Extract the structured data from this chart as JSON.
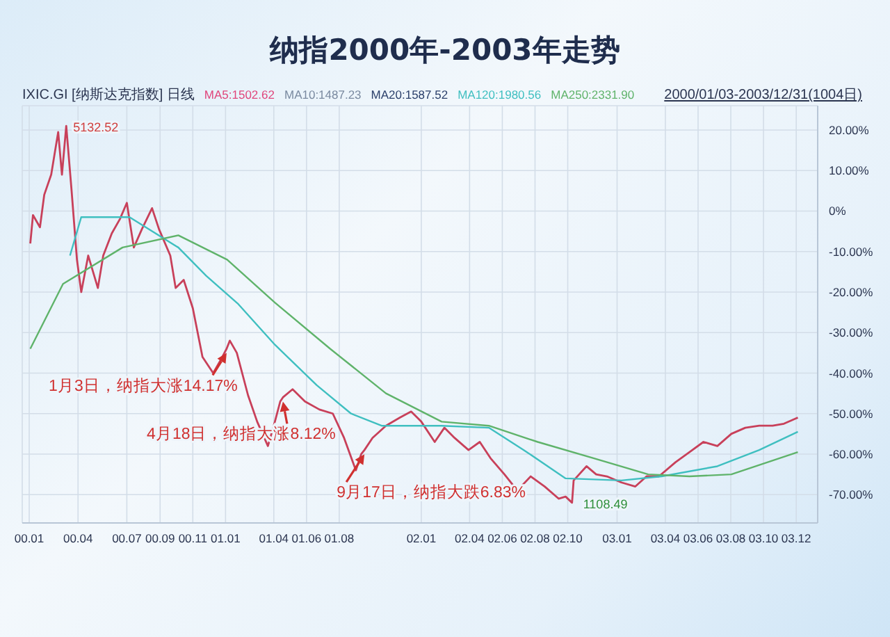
{
  "chart_data": {
    "type": "line",
    "title": "纳指2000年-2003年走势",
    "annotations": [
      "IXIC.GI [纳斯达克指数] 日线",
      "MA5:1502.62",
      "MA10:1487.23",
      "MA20:1587.52",
      "2000/01/03-2003/12/31(1004日)",
      {
        "text": "5132.52",
        "x": "2000-03-10",
        "y": 21
      },
      {
        "text": "1月3日，纳指大涨14.17%",
        "x": "2001-01-03",
        "y": -34
      },
      {
        "text": "4月18日，纳指大涨8.12%",
        "x": "2001-04-18",
        "y": -46
      },
      {
        "text": "9月17日，纳指大跌6.83%",
        "x": "2001-09-17",
        "y": -59
      },
      {
        "text": "1108.49",
        "x": "2002-10-09",
        "y": -72
      }
    ],
    "series": [
      {
        "color": "#c8405a",
        "x": [
          "2000-01-03",
          "2000-01-08",
          "2000-01-21",
          "2000-01-29",
          "2000-02-11",
          "2000-02-24",
          "2000-03-02",
          "2000-03-10",
          "2000-03-20",
          "2000-03-30",
          "2000-04-07",
          "2000-04-20",
          "2000-05-08",
          "2000-05-18",
          "2000-06-03",
          "2000-06-18",
          "2000-07-01",
          "2000-07-14",
          "2000-07-29",
          "2000-08-17",
          "2000-08-30",
          "2000-09-20",
          "2000-09-30",
          "2000-10-15",
          "2000-11-01",
          "2000-11-19",
          "2000-12-09",
          "2000-12-22",
          "2001-01-03",
          "2001-01-09",
          "2001-01-22",
          "2001-02-12",
          "2001-03-01",
          "2001-03-21",
          "2001-04-03",
          "2001-04-13",
          "2001-04-18",
          "2001-05-06",
          "2001-05-29",
          "2001-06-25",
          "2001-07-20",
          "2001-08-10",
          "2001-09-01",
          "2001-09-11",
          "2001-09-17",
          "2001-10-02",
          "2001-10-27",
          "2001-11-22",
          "2001-12-13",
          "2002-01-01",
          "2002-01-26",
          "2002-02-13",
          "2002-03-04",
          "2002-03-30",
          "2002-04-20",
          "2002-05-10",
          "2002-06-05",
          "2002-06-29",
          "2002-07-24",
          "2002-08-19",
          "2002-09-14",
          "2002-09-27",
          "2002-10-09",
          "2002-10-12",
          "2002-11-05",
          "2002-11-23",
          "2002-12-13",
          "2003-01-09",
          "2003-02-04",
          "2003-02-25",
          "2003-03-20",
          "2003-04-20",
          "2003-05-16",
          "2003-06-11",
          "2003-07-07",
          "2003-08-02",
          "2003-08-28",
          "2003-09-23",
          "2003-10-18",
          "2003-11-08",
          "2003-12-04"
        ],
        "values": [
          -8,
          -1,
          -4,
          4,
          9,
          19.5,
          9,
          21,
          5,
          -12,
          -20,
          -11,
          -19,
          -11,
          -5.5,
          -2,
          2,
          -9,
          -4.5,
          0.7,
          -4.5,
          -11,
          -19,
          -17,
          -24,
          -36,
          -40,
          -37,
          -34,
          -32,
          -35,
          -45.5,
          -52,
          -58,
          -52,
          -47,
          -46,
          -44,
          -47,
          -49,
          -50,
          -56,
          -64,
          -60,
          -59,
          -56,
          -53,
          -51,
          -49.5,
          -52,
          -57,
          -53.5,
          -56,
          -59,
          -57,
          -61,
          -65,
          -69,
          -65.5,
          -68,
          -71,
          -70.5,
          -72,
          -66.5,
          -63,
          -65,
          -65.5,
          -67,
          -68,
          -65.5,
          -65.5,
          -62,
          -59.5,
          -57,
          -58,
          -55,
          -53.5,
          -53,
          -53,
          -52.5,
          -51
        ]
      },
      {
        "name": "MA120:1980.56",
        "color": "#3fbfc0",
        "x": [
          "2000-03-17",
          "2000-04-07",
          "2000-07-06",
          "2000-10-05",
          "2000-11-26",
          "2001-01-25",
          "2001-04-03",
          "2001-06-20",
          "2001-08-23",
          "2001-10-19",
          "2002-02-08",
          "2002-05-07",
          "2002-07-11",
          "2002-09-27",
          "2003-01-09",
          "2003-03-25",
          "2003-07-07",
          "2003-09-23",
          "2003-12-04"
        ],
        "values": [
          -11,
          -1.5,
          -1.5,
          -9,
          -16,
          -23,
          -33,
          -43,
          -50,
          -53,
          -53,
          -53.5,
          -59,
          -66,
          -66.5,
          -65.5,
          -63,
          -59,
          -54.5
        ]
      },
      {
        "name": "MA250:2331.90",
        "color": "#5fb36a",
        "x": [
          "2000-01-03",
          "2000-03-04",
          "2000-06-23",
          "2000-10-05",
          "2001-01-04",
          "2001-04-03",
          "2001-07-15",
          "2001-10-27",
          "2002-02-08",
          "2002-05-07",
          "2002-08-06",
          "2002-11-18",
          "2003-02-28",
          "2003-05-16",
          "2003-08-02",
          "2003-12-04"
        ],
        "values": [
          -34,
          -18,
          -9,
          -6,
          -12,
          -22.6,
          -34,
          -45,
          -52,
          -53,
          -57,
          -61,
          -65,
          -65.5,
          -65,
          -59.5
        ]
      }
    ],
    "xlim": [
      "1999-12-19",
      "2004-01-10"
    ],
    "xticks": [
      {
        "value": "2000-01-01",
        "label": "00.01"
      },
      {
        "value": "2000-04-01",
        "label": "00.04"
      },
      {
        "value": "2000-07-01",
        "label": "00.07"
      },
      {
        "value": "2000-09-01",
        "label": "00.09"
      },
      {
        "value": "2000-11-01",
        "label": "00.11"
      },
      {
        "value": "2001-01-01",
        "label": "01.01"
      },
      {
        "value": "2001-04-01",
        "label": "01.04"
      },
      {
        "value": "2001-06-01",
        "label": "01.06"
      },
      {
        "value": "2001-08-01",
        "label": "01.08"
      },
      {
        "value": "2002-01-01",
        "label": "02.01"
      },
      {
        "value": "2002-04-01",
        "label": "02.04"
      },
      {
        "value": "2002-06-01",
        "label": "02.06"
      },
      {
        "value": "2002-08-01",
        "label": "02.08"
      },
      {
        "value": "2002-10-01",
        "label": "02.10"
      },
      {
        "value": "2003-01-01",
        "label": "03.01"
      },
      {
        "value": "2003-04-01",
        "label": "03.04"
      },
      {
        "value": "2003-06-01",
        "label": "03.06"
      },
      {
        "value": "2003-08-01",
        "label": "03.08"
      },
      {
        "value": "2003-10-01",
        "label": "03.10"
      },
      {
        "value": "2003-12-01",
        "label": "03.12"
      }
    ],
    "ylim": [
      -77,
      26
    ],
    "yticks": [
      {
        "value": 20,
        "label": "20.00%"
      },
      {
        "value": 10,
        "label": "10.00%"
      },
      {
        "value": 0,
        "label": "0%"
      },
      {
        "value": -10,
        "label": "-10.00%"
      },
      {
        "value": -20,
        "label": "-20.00%"
      },
      {
        "value": -30,
        "label": "-30.00%"
      },
      {
        "value": -40,
        "label": "-40.00%"
      },
      {
        "value": -50,
        "label": "-50.00%"
      },
      {
        "value": -60,
        "label": "-60.00%"
      },
      {
        "value": -70,
        "label": "-70.00%"
      }
    ],
    "grid": true,
    "legend": "top",
    "marker": "none",
    "line_style": "solid"
  }
}
